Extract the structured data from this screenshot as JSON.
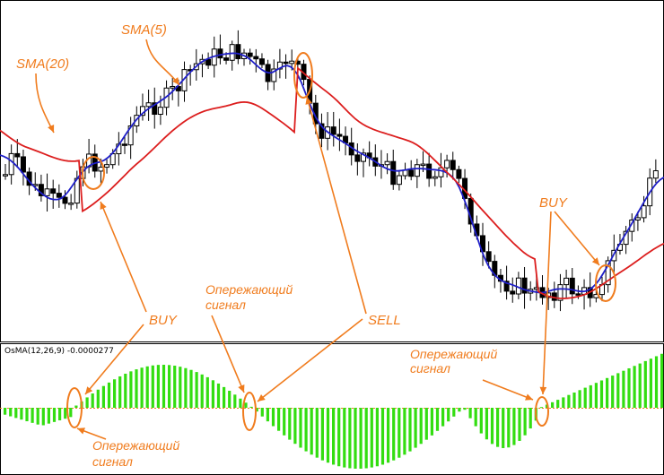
{
  "colors": {
    "candle_up_fill": "#ffffff",
    "candle_down_fill": "#000000",
    "candle_outline": "#000000",
    "sma5": "#1e1ec8",
    "sma20": "#dc1e1e",
    "osma_bar": "#33dd11",
    "zero_line": "#f07c1e",
    "annotation": "#f07c1e"
  },
  "indicator": {
    "label": "OsMA(12,26,9) -0.0000277"
  },
  "annotations": {
    "sma20": "SMA(20)",
    "sma5": "SMA(5)",
    "buy_left": "BUY",
    "sell": "SELL",
    "buy_right": "BUY",
    "leading_signal": "Опережающий сигнал",
    "leading_top_1": "Опережающий",
    "leading_top_2": "сигнал",
    "leading_bottom_left_1": "Опережающий",
    "leading_bottom_left_2": "сигнал",
    "leading_bottom_right_1": "Опережающий",
    "leading_bottom_right_2": "сигнал"
  },
  "chart_data": {
    "type": "candlestick",
    "price_panel": {
      "series": [
        {
          "name": "SMA(5)",
          "type": "line",
          "color": "#1e1ec8"
        },
        {
          "name": "SMA(20)",
          "type": "line",
          "color": "#dc1e1e"
        }
      ],
      "candles_count": 110
    },
    "indicator_panel": {
      "name": "OsMA(12,26,9)",
      "last_value": -2.77e-05,
      "type": "histogram"
    }
  }
}
